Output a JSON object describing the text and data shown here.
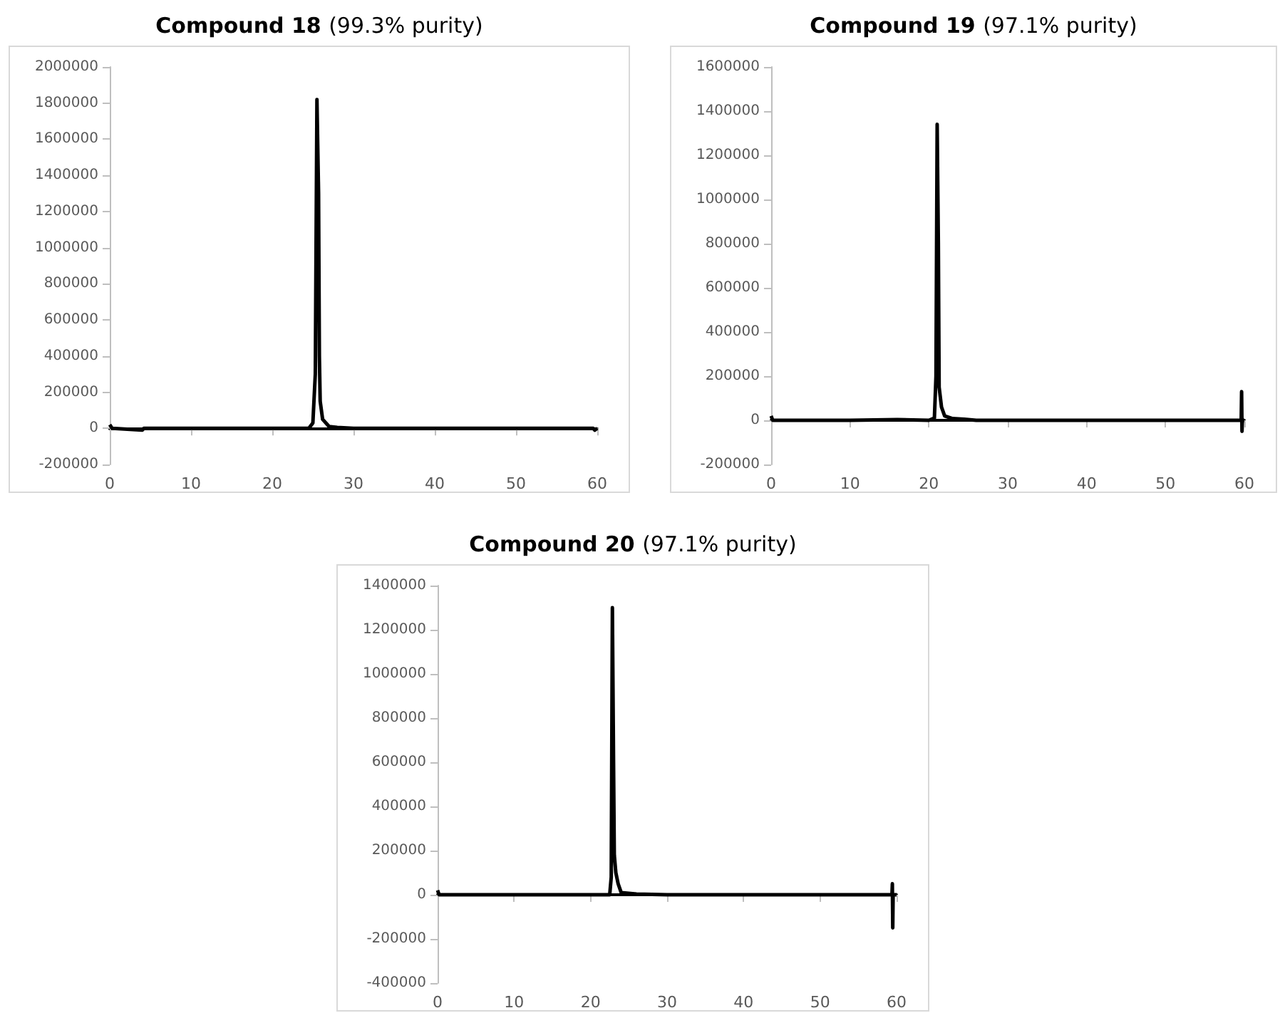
{
  "chart_data": [
    {
      "type": "line",
      "title": "Compound 18 (99.3% purity)",
      "xlim": [
        0,
        60
      ],
      "xticks": [
        0,
        10,
        20,
        30,
        40,
        50,
        60
      ],
      "ylim": [
        -200000,
        2000000
      ],
      "yticks": [
        -200000,
        0,
        200000,
        400000,
        600000,
        800000,
        1000000,
        1200000,
        1400000,
        1600000,
        1800000,
        2000000
      ],
      "line_style": "solid",
      "series": [
        {
          "color": "#000000",
          "x": [
            0,
            0.3,
            4,
            4.2,
            10,
            20,
            24.5,
            25,
            25.3,
            25.5,
            25.7,
            25.8,
            25.9,
            26.2,
            27,
            28,
            30,
            40,
            50,
            59.5,
            59.7,
            60
          ],
          "values": [
            20000,
            0,
            -10000,
            0,
            0,
            0,
            0,
            30000,
            300000,
            1820000,
            1300000,
            400000,
            150000,
            50000,
            10000,
            5000,
            0,
            0,
            0,
            0,
            -10000,
            0
          ]
        }
      ]
    },
    {
      "type": "line",
      "title": "Compound 19 (97.1% purity)",
      "xlim": [
        0,
        60
      ],
      "xticks": [
        0,
        10,
        20,
        30,
        40,
        50,
        60
      ],
      "ylim": [
        -200000,
        1600000
      ],
      "yticks": [
        -200000,
        0,
        200000,
        400000,
        600000,
        800000,
        1000000,
        1200000,
        1400000,
        1600000
      ],
      "line_style": "solid",
      "series": [
        {
          "color": "#000000",
          "x": [
            0,
            0.2,
            10,
            16,
            20,
            20.7,
            20.9,
            21.05,
            21.2,
            21.3,
            21.6,
            22,
            23,
            24.5,
            26,
            40,
            59.6,
            59.65,
            59.7,
            59.75,
            60
          ],
          "values": [
            20000,
            0,
            0,
            3000,
            0,
            10000,
            200000,
            1340000,
            800000,
            150000,
            60000,
            20000,
            8000,
            5000,
            0,
            0,
            0,
            130000,
            -50000,
            0,
            0
          ]
        }
      ]
    },
    {
      "type": "line",
      "title": "Compound 20 (97.1% purity)",
      "xlim": [
        0,
        60
      ],
      "xticks": [
        0,
        10,
        20,
        30,
        40,
        50,
        60
      ],
      "ylim": [
        -400000,
        1400000
      ],
      "yticks": [
        -400000,
        -200000,
        0,
        200000,
        400000,
        600000,
        800000,
        1000000,
        1200000,
        1400000
      ],
      "line_style": "solid",
      "series": [
        {
          "color": "#000000",
          "x": [
            0,
            0.2,
            10,
            22.5,
            22.7,
            22.85,
            23,
            23.1,
            23.3,
            23.6,
            24,
            26,
            30,
            59.4,
            59.45,
            59.5,
            59.55,
            60
          ],
          "values": [
            20000,
            0,
            0,
            0,
            80000,
            1300000,
            600000,
            180000,
            100000,
            50000,
            10000,
            3000,
            0,
            0,
            50000,
            -150000,
            0,
            0
          ]
        }
      ]
    }
  ]
}
